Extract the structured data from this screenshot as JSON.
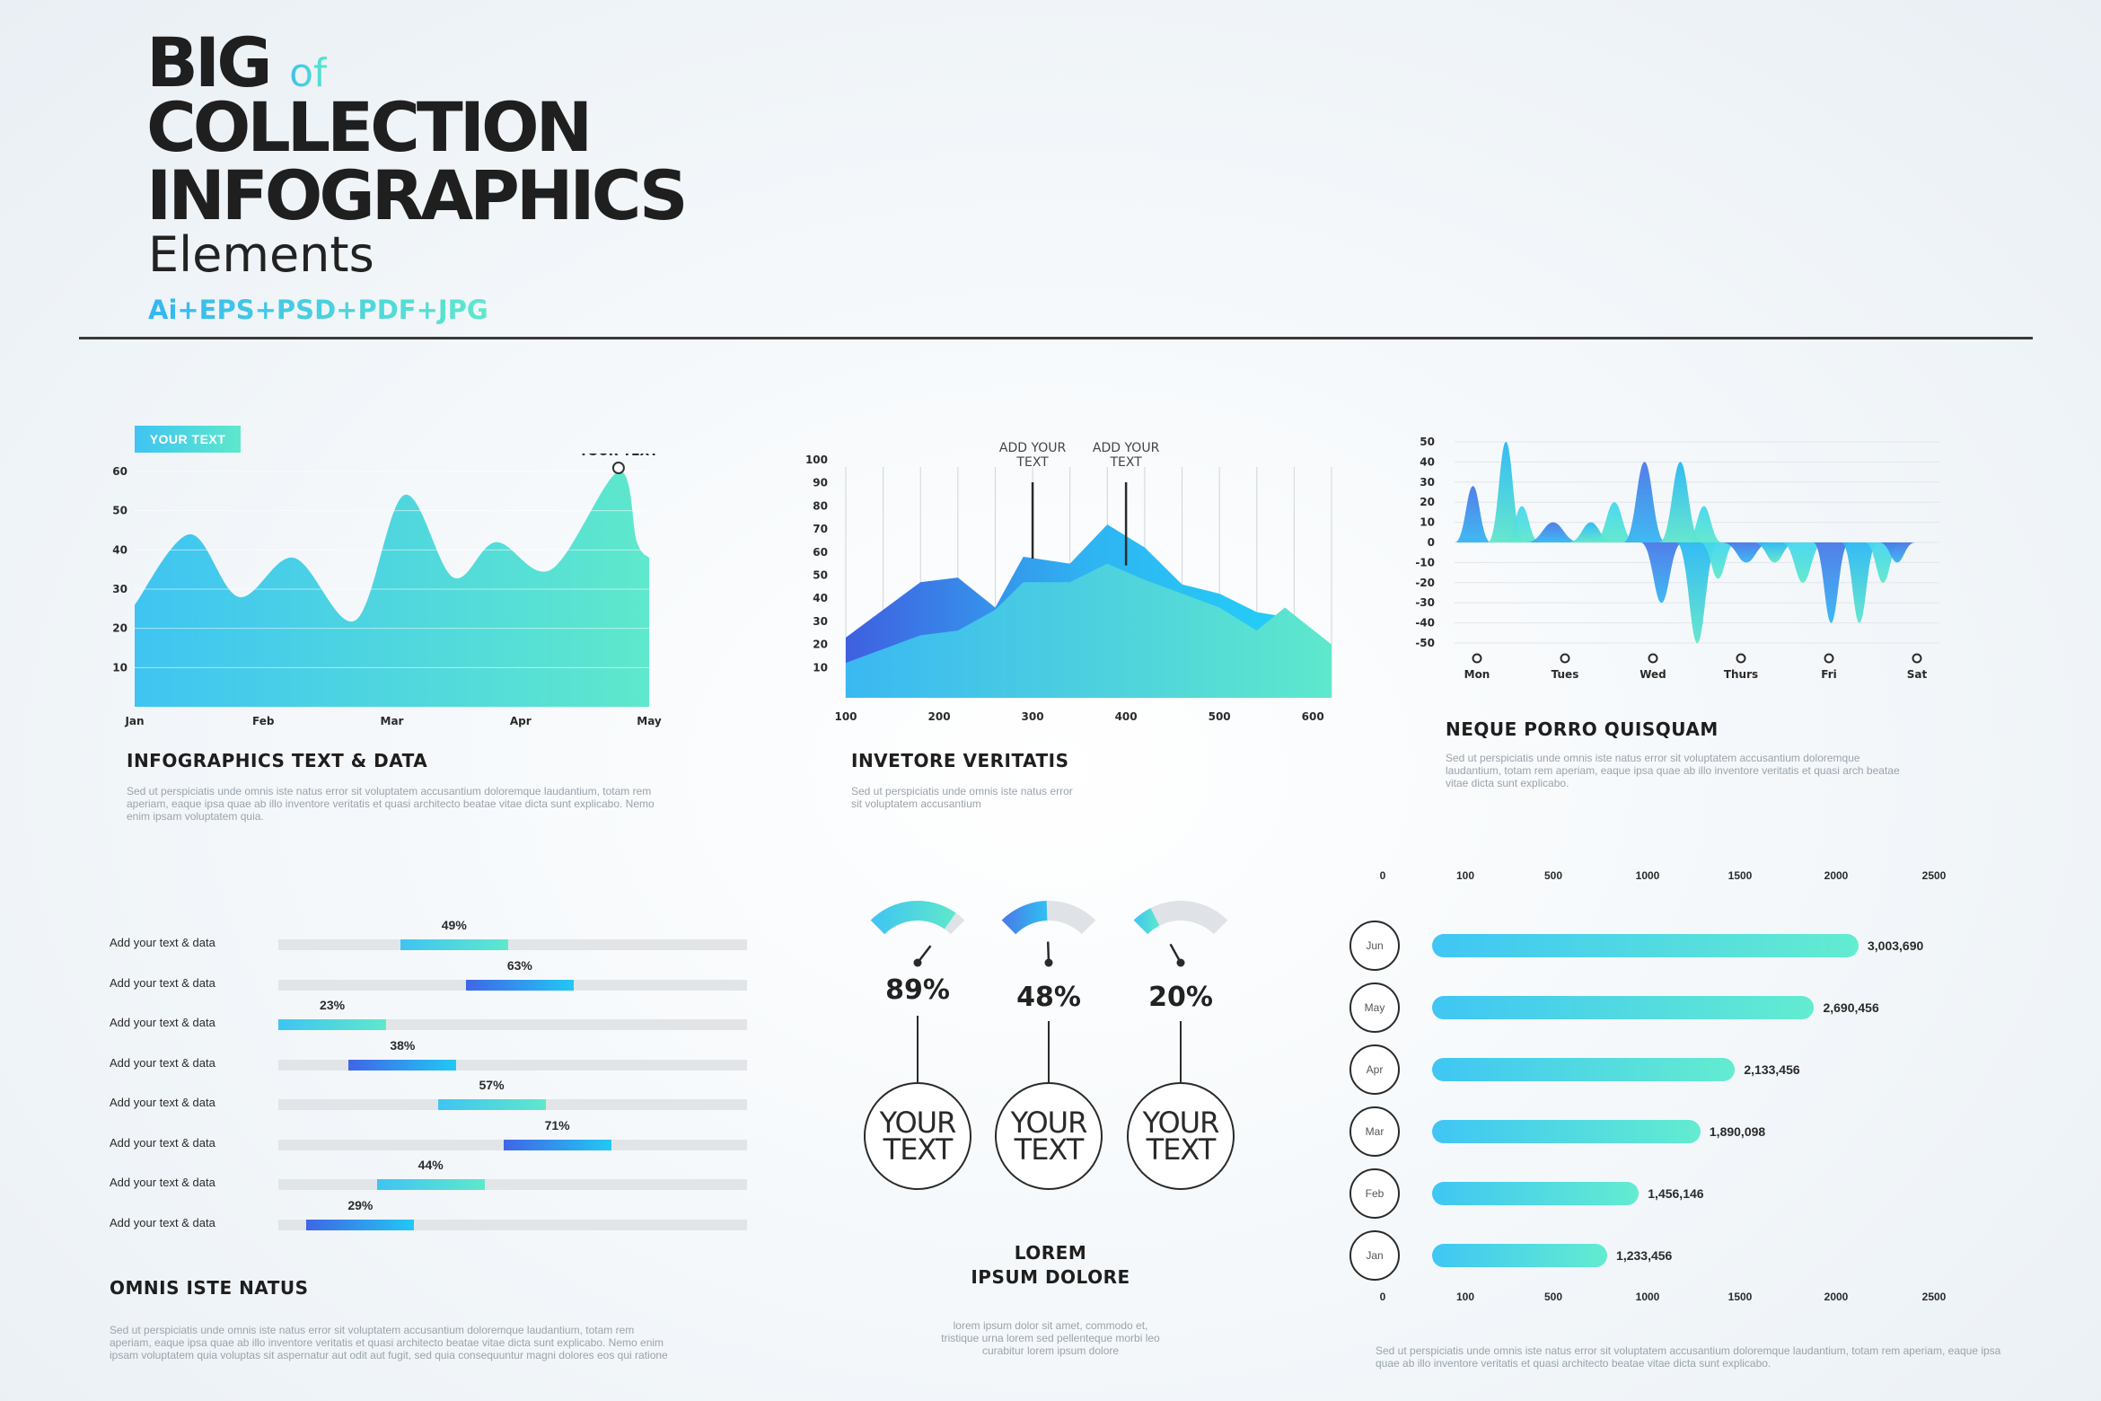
{
  "header": {
    "line1": "BIG",
    "line1_of": "of",
    "line2": "COLLECTION",
    "line3": "INFOGRAPHICS",
    "line4": "Elements",
    "formats": "Ai+EPS+PSD+PDF+JPG"
  },
  "section1": {
    "badge": "YOUR TEXT",
    "title": "INFOGRAPHICS TEXT & DATA",
    "body": "Sed ut perspiciatis unde omnis iste natus error sit voluptatem accusantium doloremque laudantium, totam rem aperiam, eaque ipsa quae ab illo inventore veritatis et quasi architecto beatae vitae dicta sunt explicabo. Nemo enim ipsam voluptatem quia."
  },
  "section2": {
    "title": "INVETORE VERITATIS",
    "body": "Sed ut perspiciatis unde omnis iste natus error sit voluptatem accusantium"
  },
  "section3": {
    "title": "NEQUE PORRO QUISQUAM",
    "body": "Sed ut perspiciatis unde omnis iste natus error sit voluptatem accusantium doloremque laudantium, totam rem aperiam, eaque ipsa quae ab illo inventore veritatis et quasi arch beatae vitae dicta sunt explicabo."
  },
  "section4": {
    "title": "OMNIS ISTE NATUS",
    "body": "Sed ut perspiciatis unde omnis iste natus error sit voluptatem accusantium doloremque laudantium, totam rem aperiam, eaque ipsa quae ab illo inventore veritatis et quasi architecto beatae vitae dicta sunt explicabo. Nemo enim ipsam voluptatem quia voluptas sit aspernatur aut odit aut fugit, sed quia consequuntur magni dolores eos qui ratione"
  },
  "section5": {
    "title1": "LOREM",
    "title2": "IPSUM DOLORE",
    "body": "lorem ipsum dolor sit amet, commodo et, tristique urna lorem sed pellenteque morbi leo curabitur lorem ipsum dolore"
  },
  "section6": {
    "body": "Sed ut perspiciatis unde omnis iste natus error sit voluptatem accusantium doloremque laudantium, totam rem aperiam, eaque ipsa quae ab illo inventore veritatis et quasi architecto beatae vitae dicta sunt explicabo."
  },
  "colors": {
    "cyan": "#3fc4f2",
    "mint": "#5ee8cc",
    "blue": "#4a78e8",
    "deep_blue": "#3f5fe0",
    "track": "#e2e5e8"
  },
  "chart_data": [
    {
      "type": "area",
      "title": "",
      "x_labels": [
        "Jan",
        "Feb",
        "Mar",
        "Apr",
        "May"
      ],
      "y_ticks": [
        10,
        20,
        30,
        40,
        50,
        60
      ],
      "ylim": [
        0,
        60
      ],
      "x": [
        0,
        0.45,
        0.85,
        1.3,
        1.8,
        2.2,
        2.6,
        2.95,
        3.4,
        3.95,
        4.1
      ],
      "y": [
        26,
        44,
        28,
        38,
        22,
        54,
        33,
        42,
        35,
        60,
        42
      ],
      "annotation": {
        "label": "YOUR TEXT",
        "x": 3.0,
        "y": 60
      }
    },
    {
      "type": "area",
      "x_ticks": [
        100,
        200,
        300,
        400,
        500,
        600
      ],
      "y_ticks": [
        10,
        20,
        30,
        40,
        50,
        60,
        70,
        80,
        90,
        100
      ],
      "ylim": [
        0,
        100
      ],
      "xlim": [
        100,
        620
      ],
      "series": [
        {
          "name": "back",
          "x": [
            100,
            180,
            220,
            260,
            290,
            340,
            380,
            420,
            460,
            500,
            540,
            570,
            620
          ],
          "y": [
            23,
            47,
            49,
            36,
            58,
            55,
            72,
            62,
            46,
            42,
            34,
            32,
            18
          ]
        },
        {
          "name": "front",
          "x": [
            100,
            180,
            220,
            260,
            290,
            340,
            380,
            420,
            460,
            500,
            540,
            570,
            620
          ],
          "y": [
            12,
            24,
            26,
            35,
            47,
            47,
            55,
            48,
            42,
            36,
            26,
            36,
            20
          ]
        }
      ],
      "annotations": [
        {
          "label": "ADD YOUR TEXT",
          "x": 300,
          "y": 58
        },
        {
          "label": "ADD YOUR TEXT",
          "x": 400,
          "y": 55
        }
      ]
    },
    {
      "type": "area",
      "x_labels": [
        "Mon",
        "Tues",
        "Wed",
        "Thurs",
        "Fri",
        "Sat"
      ],
      "y_ticks": [
        50,
        40,
        30,
        20,
        10,
        0,
        -10,
        -20,
        -30,
        -40,
        -50
      ],
      "ylim": [
        -50,
        50
      ],
      "peaks": [
        {
          "x": 0.1,
          "y": 28,
          "w": 0.12
        },
        {
          "x": 0.45,
          "y": 50,
          "w": 0.12
        },
        {
          "x": 0.62,
          "y": 18,
          "w": 0.12
        },
        {
          "x": 0.95,
          "y": 10,
          "w": 0.18
        },
        {
          "x": 1.35,
          "y": 10,
          "w": 0.15
        },
        {
          "x": 1.6,
          "y": 20,
          "w": 0.14
        },
        {
          "x": 1.92,
          "y": 40,
          "w": 0.14
        },
        {
          "x": 2.3,
          "y": 40,
          "w": 0.14
        },
        {
          "x": 2.55,
          "y": 18,
          "w": 0.12
        },
        {
          "x": 2.1,
          "y": -30,
          "w": 0.14
        },
        {
          "x": 2.48,
          "y": -50,
          "w": 0.14
        },
        {
          "x": 2.7,
          "y": -18,
          "w": 0.12
        },
        {
          "x": 3.0,
          "y": -10,
          "w": 0.16
        },
        {
          "x": 3.3,
          "y": -10,
          "w": 0.14
        },
        {
          "x": 3.6,
          "y": -20,
          "w": 0.14
        },
        {
          "x": 3.9,
          "y": -40,
          "w": 0.12
        },
        {
          "x": 4.2,
          "y": -40,
          "w": 0.12
        },
        {
          "x": 4.45,
          "y": -20,
          "w": 0.12
        },
        {
          "x": 4.6,
          "y": -10,
          "w": 0.12
        }
      ]
    },
    {
      "type": "bar",
      "title": "OMNIS ISTE NATUS",
      "categories": [
        "Add your text & data",
        "Add your text & data",
        "Add your text & data",
        "Add your text & data",
        "Add your text & data",
        "Add your text & data",
        "Add your text & data",
        "Add your text & data"
      ],
      "values": [
        49,
        63,
        23,
        38,
        57,
        71,
        44,
        29
      ],
      "labels": [
        "49%",
        "63%",
        "23%",
        "38%",
        "57%",
        "71%",
        "44%",
        "29%"
      ]
    },
    {
      "type": "gauge",
      "values": [
        89,
        48,
        20
      ],
      "labels": [
        "89%",
        "48%",
        "20%"
      ],
      "bubble_line1": [
        "YOUR",
        "YOUR",
        "YOUR"
      ],
      "bubble_line2": [
        "TEXT",
        "TEXT",
        "TEXT"
      ]
    },
    {
      "type": "bar",
      "orientation": "horizontal",
      "categories": [
        "Jun",
        "May",
        "Apr",
        "Mar",
        "Feb",
        "Jan"
      ],
      "values": [
        3003690,
        2690456,
        2133456,
        1890098,
        1456146,
        1233456
      ],
      "value_labels": [
        "3,003,690",
        "2,690,456",
        "2,133,456",
        "1,890,098",
        "1,456,146",
        "1,233,456"
      ],
      "axis_ticks": [
        "0",
        "100",
        "500",
        "1000",
        "1500",
        "2000",
        "2500"
      ]
    }
  ]
}
